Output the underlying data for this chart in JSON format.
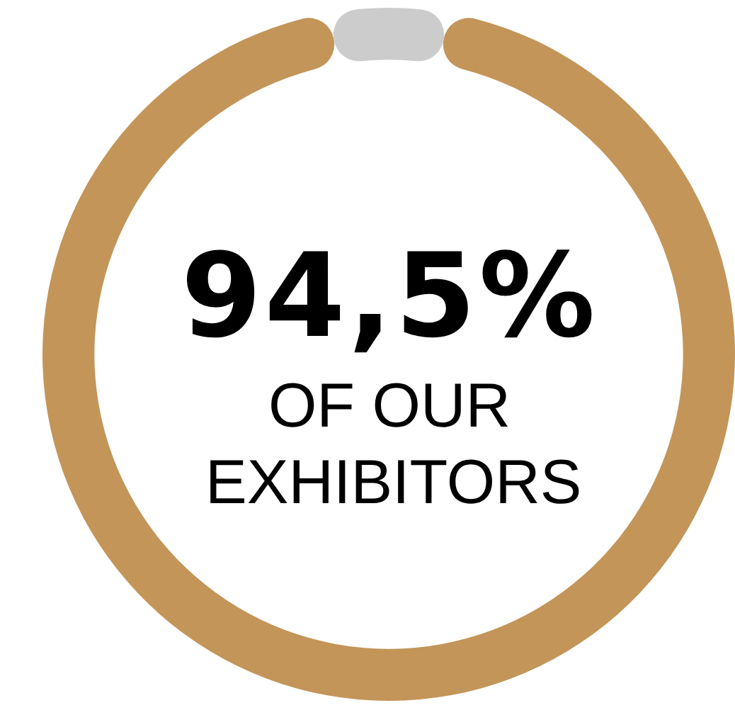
{
  "chart_data": {
    "type": "donut",
    "categories": [
      null,
      null
    ],
    "values": [
      94.5,
      5.5
    ],
    "colors": [
      "#c39559",
      "#cccccc"
    ],
    "legend": false,
    "annotations": [
      "94,5%",
      "OF OUR EXHIBITORS"
    ]
  }
}
